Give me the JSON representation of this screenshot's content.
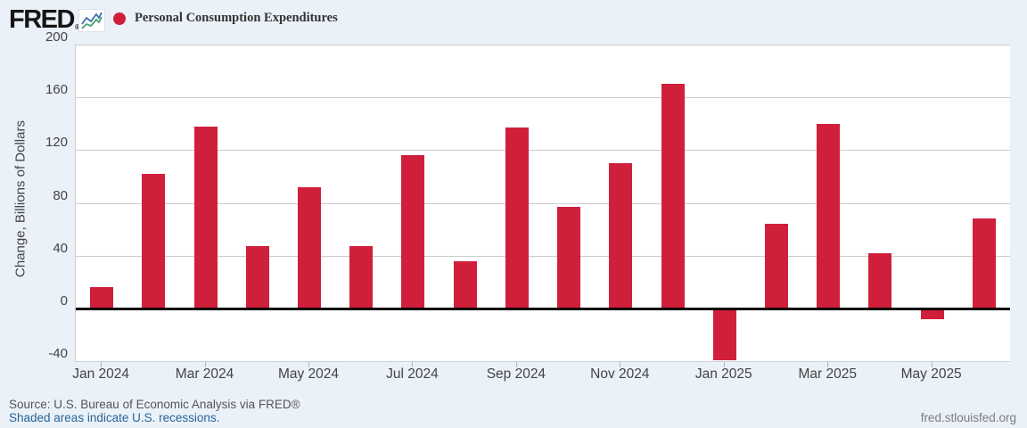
{
  "header": {
    "logo_text": "FRED",
    "logo_registered": "®"
  },
  "chart_data": {
    "type": "bar",
    "title": "Personal Consumption Expenditures",
    "ylabel": "Change, Billions of Dollars",
    "xlabel": "",
    "ylim": [
      -40,
      200
    ],
    "y_ticks": [
      200,
      160,
      120,
      80,
      40,
      0,
      -40
    ],
    "x_tick_labels": [
      "Jan 2024",
      "Mar 2024",
      "May 2024",
      "Jul 2024",
      "Sep 2024",
      "Nov 2024",
      "Jan 2025",
      "Mar 2025",
      "May 2025"
    ],
    "categories": [
      "Jan 2024",
      "Feb 2024",
      "Mar 2024",
      "Apr 2024",
      "May 2024",
      "Jun 2024",
      "Jul 2024",
      "Aug 2024",
      "Sep 2024",
      "Oct 2024",
      "Nov 2024",
      "Dec 2024",
      "Jan 2025",
      "Feb 2025",
      "Mar 2025",
      "Apr 2025",
      "May 2025",
      "Jun 2025"
    ],
    "values": [
      16,
      102,
      138,
      47,
      92,
      47,
      116,
      36,
      137,
      77,
      110,
      170,
      -39,
      64,
      140,
      42,
      -8,
      68
    ],
    "series_name": "Personal Consumption Expenditures",
    "bar_color": "#d01f3b",
    "grid": true,
    "legend_position": "top-left"
  },
  "footer": {
    "source_text": "Source: U.S. Bureau of Economic Analysis via FRED®",
    "recessions_link": "Shaded areas indicate U.S. recessions.",
    "site_link": "fred.stlouisfed.org"
  },
  "colors": {
    "background": "#eaf1f9",
    "plot_background": "#ffffff",
    "bar": "#d01f3b",
    "gridline": "#cccccc",
    "zero_line": "#000000",
    "axis_text": "#444444",
    "source_text": "#555555",
    "link": "#2a6496",
    "url_text": "#7d7d7d",
    "icon_line_blue": "#3b6fad",
    "icon_line_green": "#49a173"
  }
}
